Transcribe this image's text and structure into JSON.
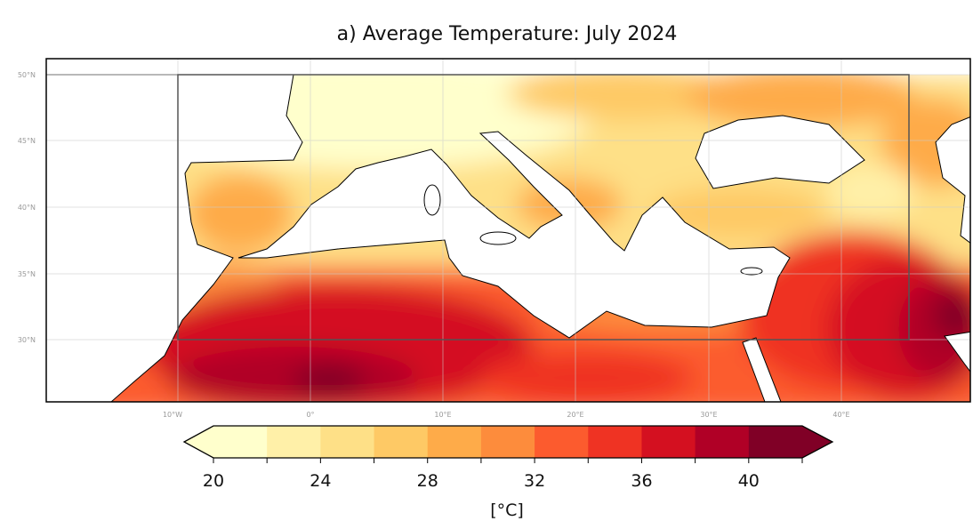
{
  "title": "a) Average Temperature: July 2024",
  "map": {
    "extent_lon": [
      -20,
      50
    ],
    "extent_lat": [
      25.3,
      51.2
    ],
    "region_box": {
      "lon": [
        -10,
        45
      ],
      "lat": [
        30,
        50
      ]
    },
    "lat_labels": [
      "50°N",
      "45°N",
      "40°N",
      "35°N",
      "30°N"
    ],
    "lon_labels": [
      "10°W",
      "0°",
      "10°E",
      "20°E",
      "30°E",
      "40°E"
    ],
    "gridlines": true
  },
  "colorbar": {
    "colormap": "YlOrRd",
    "levels": [
      20,
      22,
      24,
      26,
      28,
      30,
      32,
      34,
      36,
      38,
      40,
      42
    ],
    "colors": [
      "#ffffcc",
      "#fff0a8",
      "#fee087",
      "#fec965",
      "#feab49",
      "#fd8c3c",
      "#fc5b2e",
      "#ef3323",
      "#d41020",
      "#b00026",
      "#800026"
    ],
    "extend": "both",
    "tick_labels": [
      "20",
      "24",
      "28",
      "32",
      "36",
      "40"
    ],
    "label": "[°C]"
  }
}
